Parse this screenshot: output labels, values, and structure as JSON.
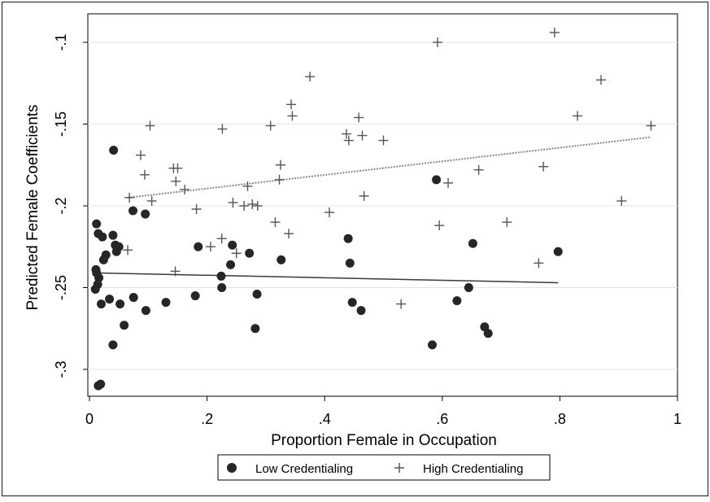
{
  "chart_data": {
    "type": "scatter",
    "title": "",
    "xlabel": "Proportion Female in Occupation",
    "ylabel": "Predicted Female Coefficients",
    "xlim": [
      0,
      1
    ],
    "ylim": [
      -0.31,
      -0.09
    ],
    "x_ticks": [
      0,
      0.2,
      0.4,
      0.6,
      0.8,
      1
    ],
    "x_tick_labels": [
      "0",
      ".2",
      ".4",
      ".6",
      ".8",
      "1"
    ],
    "y_ticks": [
      -0.1,
      -0.15,
      -0.2,
      -0.25,
      -0.3
    ],
    "y_tick_labels": [
      "-.1",
      "-.15",
      "-.2",
      "-.25",
      "-.3"
    ],
    "grid": "horizontal",
    "legend_position": "bottom",
    "series": [
      {
        "name": "Low Credentialing",
        "marker": "filled-circle",
        "color": "#262626",
        "points": [
          [
            0.012,
            -0.211
          ],
          [
            0.015,
            -0.217
          ],
          [
            0.022,
            -0.219
          ],
          [
            0.011,
            -0.239
          ],
          [
            0.012,
            -0.241
          ],
          [
            0.016,
            -0.244
          ],
          [
            0.014,
            -0.248
          ],
          [
            0.01,
            -0.251
          ],
          [
            0.02,
            -0.26
          ],
          [
            0.024,
            -0.233
          ],
          [
            0.028,
            -0.23
          ],
          [
            0.034,
            -0.257
          ],
          [
            0.041,
            -0.166
          ],
          [
            0.04,
            -0.218
          ],
          [
            0.044,
            -0.224
          ],
          [
            0.046,
            -0.228
          ],
          [
            0.05,
            -0.225
          ],
          [
            0.052,
            -0.26
          ],
          [
            0.059,
            -0.273
          ],
          [
            0.04,
            -0.285
          ],
          [
            0.074,
            -0.203
          ],
          [
            0.075,
            -0.256
          ],
          [
            0.095,
            -0.205
          ],
          [
            0.096,
            -0.264
          ],
          [
            0.13,
            -0.259
          ],
          [
            0.18,
            -0.255
          ],
          [
            0.185,
            -0.225
          ],
          [
            0.224,
            -0.243
          ],
          [
            0.225,
            -0.25
          ],
          [
            0.24,
            -0.236
          ],
          [
            0.243,
            -0.224
          ],
          [
            0.272,
            -0.229
          ],
          [
            0.282,
            -0.275
          ],
          [
            0.285,
            -0.254
          ],
          [
            0.326,
            -0.233
          ],
          [
            0.015,
            -0.31
          ],
          [
            0.019,
            -0.309
          ],
          [
            0.44,
            -0.22
          ],
          [
            0.443,
            -0.235
          ],
          [
            0.447,
            -0.259
          ],
          [
            0.462,
            -0.264
          ],
          [
            0.583,
            -0.285
          ],
          [
            0.59,
            -0.184
          ],
          [
            0.625,
            -0.258
          ],
          [
            0.645,
            -0.25
          ],
          [
            0.652,
            -0.223
          ],
          [
            0.672,
            -0.274
          ],
          [
            0.678,
            -0.278
          ],
          [
            0.797,
            -0.228
          ]
        ]
      },
      {
        "name": "High Credentialing",
        "marker": "plus",
        "color": "#555555",
        "points": [
          [
            0.065,
            -0.227
          ],
          [
            0.068,
            -0.195
          ],
          [
            0.087,
            -0.169
          ],
          [
            0.094,
            -0.181
          ],
          [
            0.103,
            -0.151
          ],
          [
            0.106,
            -0.197
          ],
          [
            0.143,
            -0.177
          ],
          [
            0.147,
            -0.185
          ],
          [
            0.15,
            -0.177
          ],
          [
            0.146,
            -0.24
          ],
          [
            0.162,
            -0.19
          ],
          [
            0.182,
            -0.202
          ],
          [
            0.206,
            -0.225
          ],
          [
            0.225,
            -0.22
          ],
          [
            0.226,
            -0.153
          ],
          [
            0.244,
            -0.198
          ],
          [
            0.25,
            -0.229
          ],
          [
            0.263,
            -0.2
          ],
          [
            0.269,
            -0.188
          ],
          [
            0.277,
            -0.199
          ],
          [
            0.286,
            -0.2
          ],
          [
            0.308,
            -0.151
          ],
          [
            0.316,
            -0.21
          ],
          [
            0.323,
            -0.184
          ],
          [
            0.325,
            -0.175
          ],
          [
            0.339,
            -0.217
          ],
          [
            0.343,
            -0.138
          ],
          [
            0.345,
            -0.145
          ],
          [
            0.375,
            -0.121
          ],
          [
            0.408,
            -0.204
          ],
          [
            0.437,
            -0.156
          ],
          [
            0.441,
            -0.16
          ],
          [
            0.458,
            -0.146
          ],
          [
            0.464,
            -0.157
          ],
          [
            0.467,
            -0.194
          ],
          [
            0.5,
            -0.16
          ],
          [
            0.53,
            -0.26
          ],
          [
            0.592,
            -0.1
          ],
          [
            0.595,
            -0.212
          ],
          [
            0.61,
            -0.186
          ],
          [
            0.662,
            -0.178
          ],
          [
            0.71,
            -0.21
          ],
          [
            0.764,
            -0.235
          ],
          [
            0.772,
            -0.176
          ],
          [
            0.791,
            -0.094
          ],
          [
            0.83,
            -0.145
          ],
          [
            0.87,
            -0.123
          ],
          [
            0.905,
            -0.197
          ],
          [
            0.955,
            -0.151
          ]
        ]
      }
    ],
    "fit_lines": [
      {
        "series": "Low Credentialing",
        "style": "solid",
        "color": "#3a3a3a",
        "x": [
          0.01,
          0.797
        ],
        "y": [
          -0.241,
          -0.247
        ]
      },
      {
        "series": "High Credentialing",
        "style": "dotted",
        "color": "#8a8a8a",
        "x": [
          0.065,
          0.955
        ],
        "y": [
          -0.195,
          -0.158
        ]
      }
    ]
  }
}
